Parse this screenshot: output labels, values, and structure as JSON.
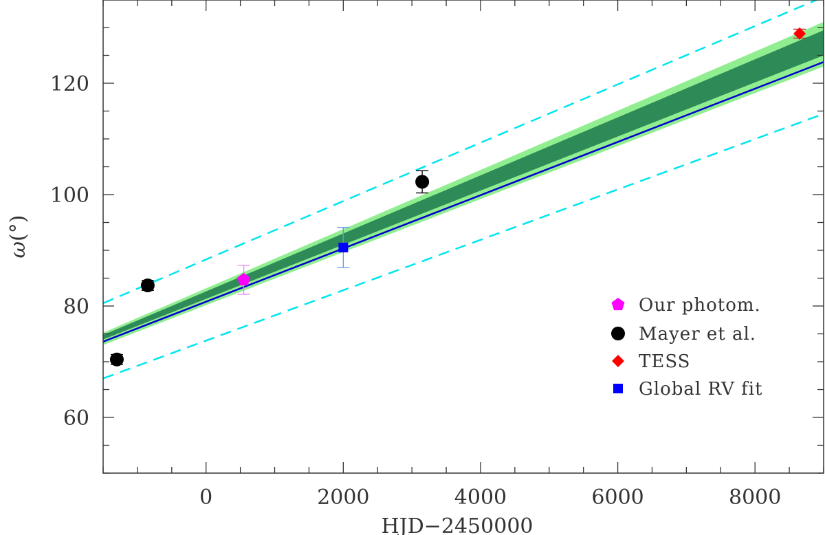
{
  "chart_data": {
    "type": "scatter",
    "xlabel": "HJD−2450000",
    "ylabel_main": "ω",
    "ylabel_unit": "(°)",
    "xlim": [
      -1500,
      9000
    ],
    "ylim": [
      50,
      135
    ],
    "x_ticks_major": [
      0,
      2000,
      4000,
      6000,
      8000
    ],
    "x_tick_labels": [
      "0",
      "2000",
      "4000",
      "6000",
      "8000"
    ],
    "x_ticks_minor_step": 500,
    "y_ticks_major": [
      60,
      80,
      100,
      120
    ],
    "y_tick_labels": [
      "60",
      "80",
      "100",
      "120"
    ],
    "y_ticks_minor_step": 5,
    "grid": false,
    "legend_position": "bottom-right",
    "colors": {
      "light_band": "#90EE90",
      "dark_band": "#2E8B57",
      "fit_line": "#0000CD",
      "dashed": "#00E5EE",
      "our_photom": "#FF00FF",
      "mayer": "#000000",
      "tess": "#FF0000",
      "global_rv": "#0000FF",
      "global_rv_err": "#6495ED",
      "our_photom_err": "#EE82EE",
      "tess_err": "#B22222"
    },
    "bands": {
      "light": {
        "x": [
          -1500,
          9000
        ],
        "lower": [
          73.0,
          123.0
        ],
        "upper": [
          75.2,
          131.0
        ]
      },
      "dark": {
        "x": [
          -1500,
          9000
        ],
        "lower": [
          74.0,
          125.0
        ],
        "upper": [
          74.8,
          129.5
        ]
      }
    },
    "fit_line": {
      "x": [
        -1500,
        9000
      ],
      "y": [
        73.6,
        123.8
      ]
    },
    "dashed_upper": {
      "x": [
        -1500,
        9000
      ],
      "y": [
        80.5,
        135.5
      ]
    },
    "dashed_lower": {
      "x": [
        -1500,
        9000
      ],
      "y": [
        67.0,
        114.5
      ]
    },
    "series": [
      {
        "name": "Our photom.",
        "marker": "pentagon",
        "points": [
          {
            "x": 550,
            "y": 84.7,
            "yerr": 2.6
          }
        ]
      },
      {
        "name": "Mayer et al.",
        "marker": "circle",
        "points": [
          {
            "x": -1300,
            "y": 70.4,
            "yerr": 0.9
          },
          {
            "x": -850,
            "y": 83.7,
            "yerr": 0.9
          },
          {
            "x": 3150,
            "y": 102.3,
            "yerr": 2.0
          }
        ]
      },
      {
        "name": "TESS",
        "marker": "diamond",
        "points": [
          {
            "x": 8650,
            "y": 128.9,
            "yerr": 0.8
          }
        ]
      },
      {
        "name": "Global RV fit",
        "marker": "square",
        "points": [
          {
            "x": 2000,
            "y": 90.5,
            "yerr": 3.6
          }
        ]
      }
    ]
  }
}
